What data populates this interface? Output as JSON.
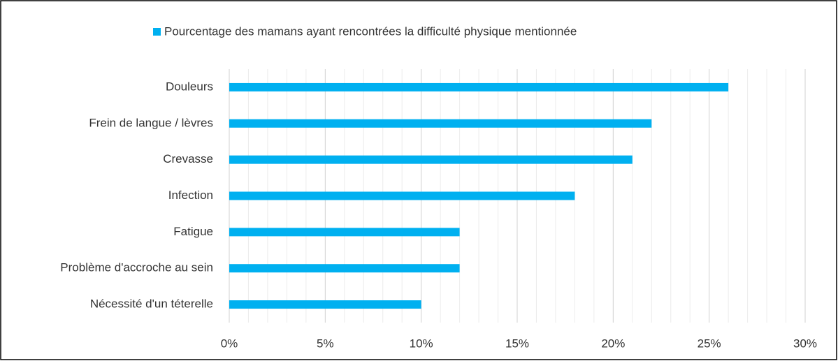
{
  "chart_data": {
    "type": "barh",
    "categories": [
      "Douleurs",
      "Frein de langue / lèvres",
      "Crevasse",
      "Infection",
      "Fatigue",
      "Problème d'accroche au sein",
      "Nécessité d'un téterelle"
    ],
    "series": [
      {
        "name": "Pourcentage des mamans ayant rencontrées la difficulté physique mentionnée",
        "color": "#00b0f0",
        "values": [
          26,
          22,
          21,
          18,
          12,
          12,
          10
        ]
      }
    ],
    "xlim": [
      0,
      30
    ],
    "xticks": [
      {
        "value": 0,
        "label": "0%"
      },
      {
        "value": 5,
        "label": "5%"
      },
      {
        "value": 10,
        "label": "10%"
      },
      {
        "value": 15,
        "label": "15%"
      },
      {
        "value": 20,
        "label": "20%"
      },
      {
        "value": 25,
        "label": "25%"
      },
      {
        "value": 30,
        "label": "30%"
      }
    ],
    "xminor_ticks": [
      1,
      2,
      3,
      4,
      6,
      7,
      8,
      9,
      11,
      12,
      13,
      14,
      16,
      17,
      18,
      19,
      21,
      22,
      23,
      24,
      26,
      27,
      28,
      29
    ],
    "grid": true,
    "legend": "top"
  }
}
